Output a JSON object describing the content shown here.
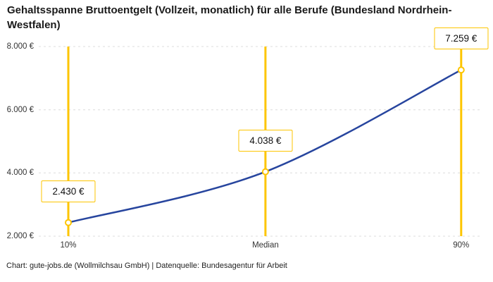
{
  "title": "Gehaltsspanne Bruttoentgelt (Vollzeit, monatlich) für alle Berufe (Bundesland Nordrhein-Westfalen)",
  "footer": "Chart: gute-jobs.de (Wollmilchsau GmbH) | Datenquelle: Bundesagentur für Arbeit",
  "colors": {
    "accent_yellow": "#FDC500",
    "line_blue": "#27459E",
    "grid": "#DCDCDC"
  },
  "chart_data": {
    "type": "line",
    "title": "Gehaltsspanne Bruttoentgelt (Vollzeit, monatlich) für alle Berufe (Bundesland Nordrhein-Westfalen)",
    "categories": [
      "10%",
      "Median",
      "90%"
    ],
    "values": [
      2430,
      4038,
      7259
    ],
    "value_labels": [
      "2.430 €",
      "4.038 €",
      "7.259 €"
    ],
    "ylim": [
      2000,
      8000
    ],
    "yticks": [
      2000,
      4000,
      6000,
      8000
    ],
    "ytick_labels": [
      "2.000 €",
      "4.000 €",
      "6.000 €",
      "8.000 €"
    ],
    "xlabel": "",
    "ylabel": "",
    "grid": "horizontal-dashed",
    "legend": "none",
    "annotations": "vertical yellow marker line at each category with boxed value label",
    "source": "Chart: gute-jobs.de (Wollmilchsau GmbH) | Datenquelle: Bundesagentur für Arbeit"
  }
}
